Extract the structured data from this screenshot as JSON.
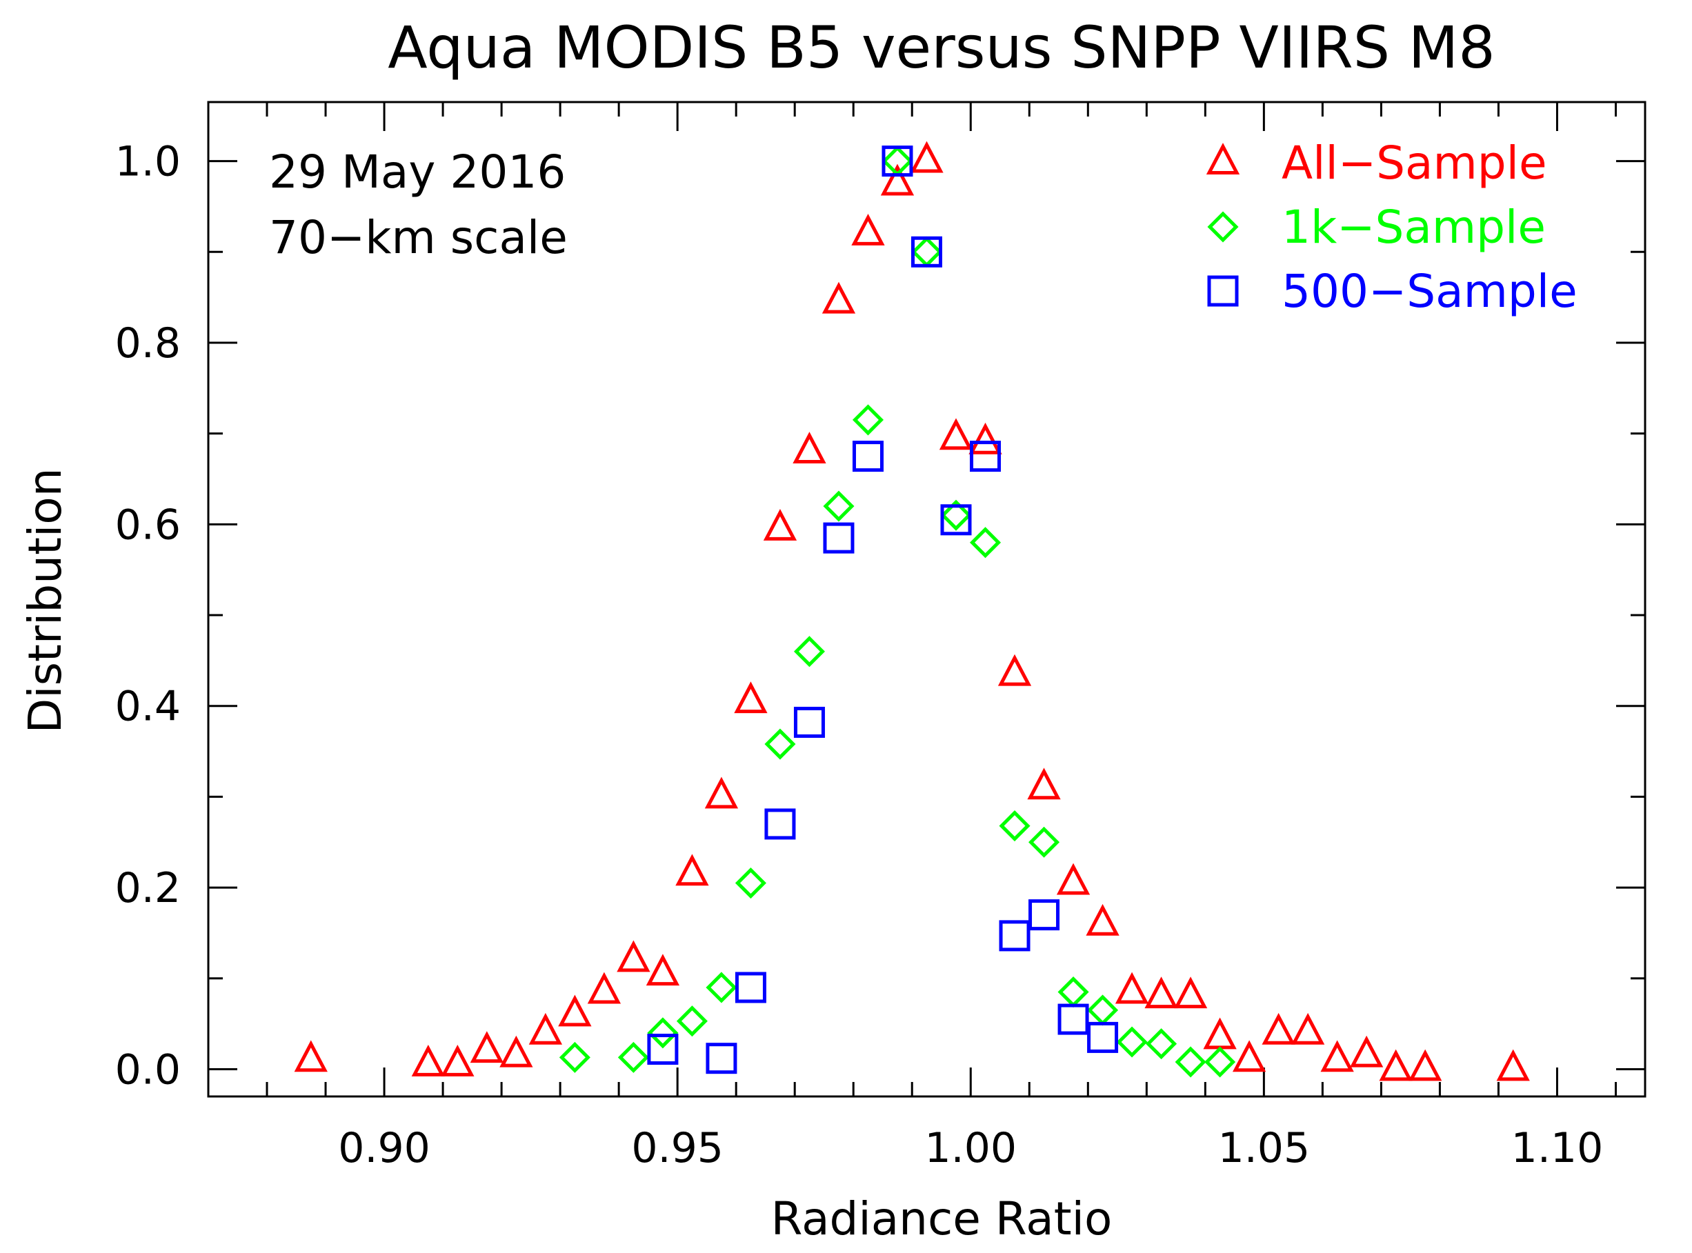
{
  "chart_data": {
    "type": "scatter",
    "title": "Aqua MODIS B5 versus SNPP VIIRS M8",
    "xlabel": "Radiance Ratio",
    "ylabel": "Distribution",
    "xlim": [
      0.87,
      1.115
    ],
    "ylim": [
      -0.03,
      1.065
    ],
    "xticks": [
      "0.90",
      "0.95",
      "1.00",
      "1.05",
      "1.10"
    ],
    "xtick_values": [
      0.9,
      0.95,
      1.0,
      1.05,
      1.1
    ],
    "yticks": [
      "0.0",
      "0.2",
      "0.4",
      "0.6",
      "0.8",
      "1.0"
    ],
    "ytick_values": [
      0.0,
      0.2,
      0.4,
      0.6,
      0.8,
      1.0
    ],
    "annotations": [
      "29 May 2016",
      "70−km scale"
    ],
    "legend_position": "top-right",
    "series": [
      {
        "name": "All−Sample",
        "marker": "triangle",
        "color": "#ff0000",
        "x": [
          0.8875,
          0.9075,
          0.9125,
          0.9175,
          0.9225,
          0.9275,
          0.9325,
          0.9375,
          0.9425,
          0.9475,
          0.9525,
          0.9575,
          0.9625,
          0.9675,
          0.9725,
          0.9775,
          0.9825,
          0.9875,
          0.9925,
          0.9975,
          1.0025,
          1.0075,
          1.0125,
          1.0175,
          1.0225,
          1.0275,
          1.0325,
          1.0375,
          1.0425,
          1.0475,
          1.0525,
          1.0575,
          1.0625,
          1.0675,
          1.0725,
          1.0775,
          1.0925
        ],
        "y": [
          0.01,
          0.005,
          0.005,
          0.02,
          0.015,
          0.04,
          0.06,
          0.085,
          0.12,
          0.105,
          0.215,
          0.3,
          0.405,
          0.595,
          0.68,
          0.845,
          0.92,
          0.975,
          1.0,
          0.695,
          0.69,
          0.435,
          0.31,
          0.205,
          0.16,
          0.085,
          0.08,
          0.08,
          0.035,
          0.01,
          0.04,
          0.04,
          0.01,
          0.015,
          0.0,
          0.0,
          0.0
        ]
      },
      {
        "name": "1k−Sample",
        "marker": "diamond",
        "color": "#00ff00",
        "x": [
          0.9325,
          0.9425,
          0.9475,
          0.9525,
          0.9575,
          0.9625,
          0.9675,
          0.9725,
          0.9775,
          0.9825,
          0.9875,
          0.9925,
          0.9975,
          1.0025,
          1.0075,
          1.0125,
          1.0175,
          1.0225,
          1.0275,
          1.0325,
          1.0375,
          1.0425
        ],
        "y": [
          0.013,
          0.013,
          0.04,
          0.053,
          0.09,
          0.205,
          0.358,
          0.46,
          0.62,
          0.715,
          1.0,
          0.9,
          0.61,
          0.58,
          0.268,
          0.25,
          0.085,
          0.065,
          0.03,
          0.028,
          0.008,
          0.008
        ]
      },
      {
        "name": "500−Sample",
        "marker": "square",
        "color": "#0000ff",
        "x": [
          0.9475,
          0.9575,
          0.9625,
          0.9675,
          0.9725,
          0.9775,
          0.9825,
          0.9875,
          0.9925,
          0.9975,
          1.0025,
          1.0075,
          1.0125,
          1.0175,
          1.0225
        ],
        "y": [
          0.022,
          0.012,
          0.09,
          0.27,
          0.382,
          0.585,
          0.675,
          1.0,
          0.9,
          0.605,
          0.675,
          0.147,
          0.17,
          0.055,
          0.035
        ]
      }
    ]
  }
}
